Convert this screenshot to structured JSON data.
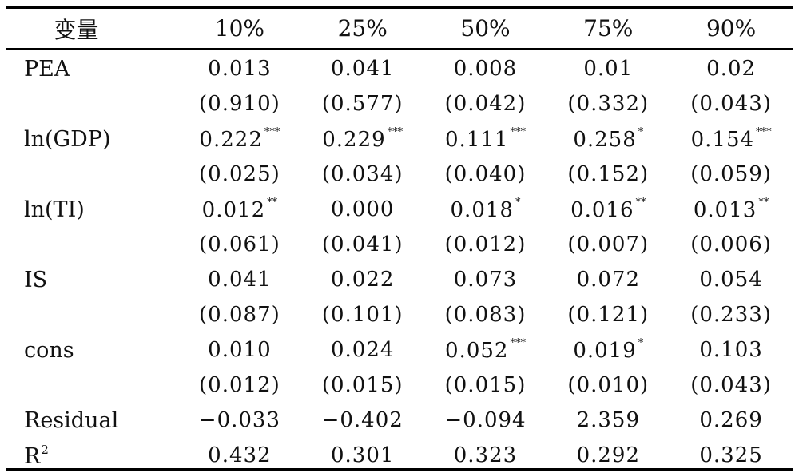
{
  "table": {
    "headers": [
      "变量",
      "10%",
      "25%",
      "50%",
      "75%",
      "90%"
    ],
    "rows": [
      {
        "label": "PEA",
        "cells": [
          [
            "0.013",
            ""
          ],
          [
            "0.041",
            ""
          ],
          [
            "0.008",
            ""
          ],
          [
            "0.01",
            ""
          ],
          [
            "0.02",
            ""
          ]
        ]
      },
      {
        "label": "",
        "cells": [
          [
            "(0.910)",
            ""
          ],
          [
            "(0.577)",
            ""
          ],
          [
            "(0.042)",
            ""
          ],
          [
            "(0.332)",
            ""
          ],
          [
            "(0.043)",
            ""
          ]
        ]
      },
      {
        "label": "ln(GDP)",
        "cells": [
          [
            "0.222",
            "***"
          ],
          [
            "0.229",
            "***"
          ],
          [
            "0.111",
            "***"
          ],
          [
            "0.258",
            "*"
          ],
          [
            "0.154",
            "***"
          ]
        ]
      },
      {
        "label": "",
        "cells": [
          [
            "(0.025)",
            ""
          ],
          [
            "(0.034)",
            ""
          ],
          [
            "(0.040)",
            ""
          ],
          [
            "(0.152)",
            ""
          ],
          [
            "(0.059)",
            ""
          ]
        ]
      },
      {
        "label": "ln(TI)",
        "cells": [
          [
            "0.012",
            "**"
          ],
          [
            "0.000",
            ""
          ],
          [
            "0.018",
            "*"
          ],
          [
            "0.016",
            "**"
          ],
          [
            "0.013",
            "**"
          ]
        ]
      },
      {
        "label": "",
        "cells": [
          [
            "(0.061)",
            ""
          ],
          [
            "(0.041)",
            ""
          ],
          [
            "(0.012)",
            ""
          ],
          [
            "(0.007)",
            ""
          ],
          [
            "(0.006)",
            ""
          ]
        ]
      },
      {
        "label": "IS",
        "cells": [
          [
            "0.041",
            ""
          ],
          [
            "0.022",
            ""
          ],
          [
            "0.073",
            ""
          ],
          [
            "0.072",
            ""
          ],
          [
            "0.054",
            ""
          ]
        ]
      },
      {
        "label": "",
        "cells": [
          [
            "(0.087)",
            ""
          ],
          [
            "(0.101)",
            ""
          ],
          [
            "(0.083)",
            ""
          ],
          [
            "(0.121)",
            ""
          ],
          [
            "(0.233)",
            ""
          ]
        ]
      },
      {
        "label": "cons",
        "cells": [
          [
            "0.010",
            ""
          ],
          [
            "0.024",
            ""
          ],
          [
            "0.052",
            "***"
          ],
          [
            "0.019",
            "*"
          ],
          [
            "0.103",
            ""
          ]
        ]
      },
      {
        "label": "",
        "cells": [
          [
            "(0.012)",
            ""
          ],
          [
            "(0.015)",
            ""
          ],
          [
            "(0.015)",
            ""
          ],
          [
            "(0.010)",
            ""
          ],
          [
            "(0.043)",
            ""
          ]
        ]
      },
      {
        "label": "Residual",
        "cells": [
          [
            "−0.033",
            ""
          ],
          [
            "−0.402",
            ""
          ],
          [
            "−0.094",
            ""
          ],
          [
            "2.359",
            ""
          ],
          [
            "0.269",
            ""
          ]
        ]
      },
      {
        "label": "R",
        "label_sup": "2",
        "cells": [
          [
            "0.432",
            ""
          ],
          [
            "0.301",
            ""
          ],
          [
            "0.323",
            ""
          ],
          [
            "0.292",
            ""
          ],
          [
            "0.325",
            ""
          ]
        ]
      }
    ]
  }
}
